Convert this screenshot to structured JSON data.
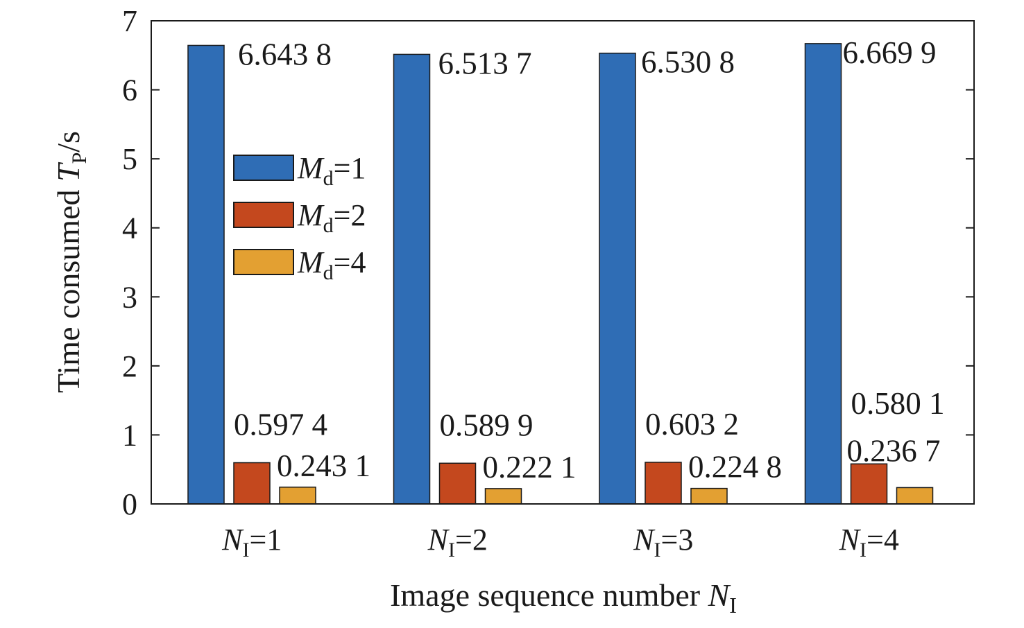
{
  "chart_data": {
    "type": "bar",
    "categories": [
      {
        "sym": "N",
        "sub": "I",
        "rest": "=1"
      },
      {
        "sym": "N",
        "sub": "I",
        "rest": "=2"
      },
      {
        "sym": "N",
        "sub": "I",
        "rest": "=3"
      },
      {
        "sym": "N",
        "sub": "I",
        "rest": "=4"
      }
    ],
    "series": [
      {
        "name": {
          "sym": "M",
          "sub": "d",
          "rest": "=1"
        },
        "color": "#2f6db5",
        "values": [
          6.6438,
          6.5137,
          6.5308,
          6.6699
        ],
        "labels": [
          "6.643 8",
          "6.513 7",
          "6.530 8",
          "6.669 9"
        ]
      },
      {
        "name": {
          "sym": "M",
          "sub": "d",
          "rest": "=2"
        },
        "color": "#c4481e",
        "values": [
          0.5974,
          0.5899,
          0.6032,
          0.5801
        ],
        "labels": [
          "0.597 4",
          "0.589 9",
          "0.603 2",
          "0.580 1"
        ]
      },
      {
        "name": {
          "sym": "M",
          "sub": "d",
          "rest": "=4"
        },
        "color": "#e3a032",
        "values": [
          0.2431,
          0.2221,
          0.2248,
          0.2367
        ],
        "labels": [
          "0.243 1",
          "0.222 1",
          "0.224 8",
          "0.236 7"
        ]
      }
    ],
    "ylim": [
      0,
      7
    ],
    "yticks": [
      "0",
      "1",
      "2",
      "3",
      "4",
      "5",
      "6",
      "7"
    ],
    "xlabel": {
      "text": "Image sequence number ",
      "sym": "N",
      "sub": "I"
    },
    "ylabel": {
      "text": "Time consumed ",
      "sym": "T",
      "sub": "P",
      "rest": "/s"
    },
    "grid": false,
    "legend": "center-left"
  }
}
